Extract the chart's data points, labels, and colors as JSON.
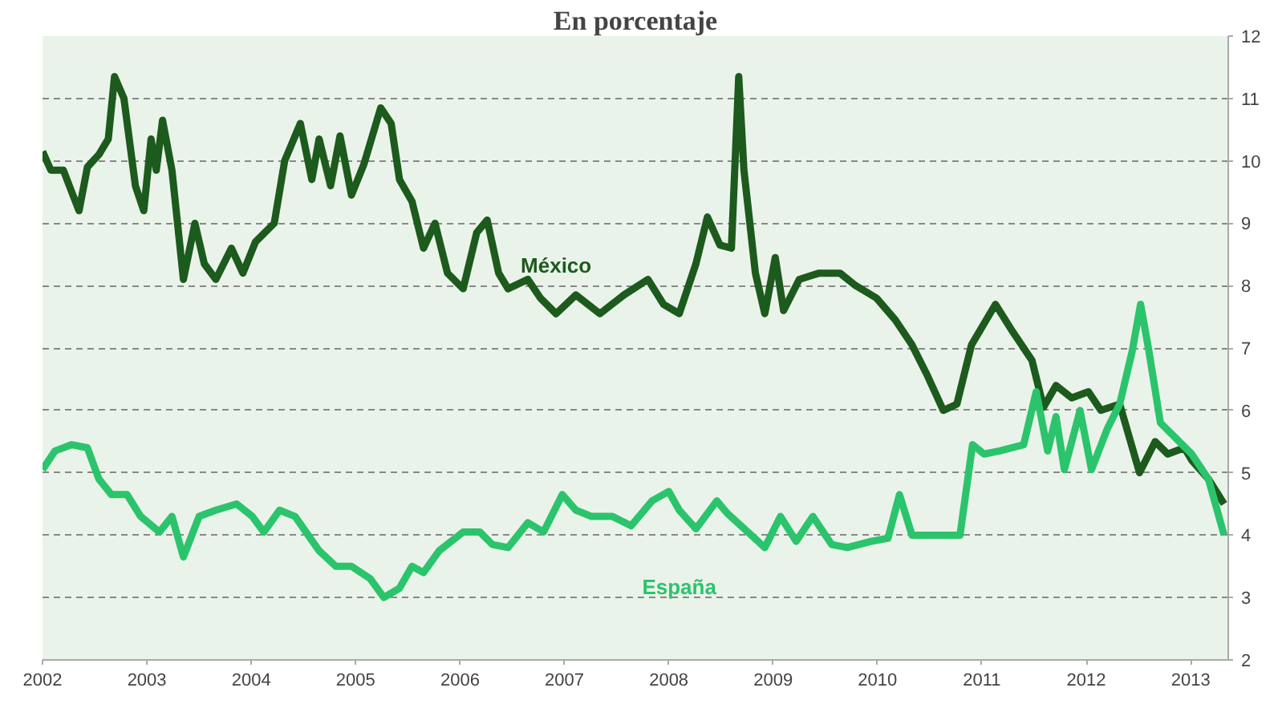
{
  "chart_data": {
    "type": "line",
    "title": "En porcentaje",
    "xlim": [
      2002,
      2013.36
    ],
    "xticks": [
      2002,
      2003,
      2004,
      2005,
      2006,
      2007,
      2008,
      2009,
      2010,
      2011,
      2012,
      2013
    ],
    "ylim": [
      2,
      12
    ],
    "yticks": [
      2,
      3,
      4,
      5,
      6,
      7,
      8,
      9,
      10,
      11,
      12
    ],
    "grid": "y",
    "line_style": "solid",
    "series": [
      {
        "name": "México",
        "color": "#1d5a1d",
        "x": [
          2002.0,
          2002.08,
          2002.2,
          2002.28,
          2002.35,
          2002.43,
          2002.54,
          2002.63,
          2002.69,
          2002.78,
          2002.89,
          2002.97,
          2003.04,
          2003.09,
          2003.15,
          2003.24,
          2003.35,
          2003.46,
          2003.55,
          2003.66,
          2003.81,
          2003.92,
          2004.04,
          2004.22,
          2004.32,
          2004.47,
          2004.58,
          2004.65,
          2004.76,
          2004.85,
          2004.96,
          2005.08,
          2005.24,
          2005.34,
          2005.42,
          2005.54,
          2005.65,
          2005.76,
          2005.88,
          2006.03,
          2006.16,
          2006.26,
          2006.37,
          2006.46,
          2006.65,
          2006.77,
          2006.92,
          2007.11,
          2007.34,
          2007.57,
          2007.8,
          2007.95,
          2008.1,
          2008.26,
          2008.37,
          2008.49,
          2008.6,
          2008.67,
          2008.72,
          2008.83,
          2008.92,
          2009.02,
          2009.1,
          2009.25,
          2009.44,
          2009.64,
          2009.79,
          2009.99,
          2010.17,
          2010.33,
          2010.48,
          2010.63,
          2010.76,
          2010.9,
          2011.13,
          2011.28,
          2011.48,
          2011.59,
          2011.71,
          2011.86,
          2012.02,
          2012.14,
          2012.32,
          2012.51,
          2012.66,
          2012.78,
          2012.94,
          2013.01,
          2013.17,
          2013.32
        ],
        "values": [
          10.15,
          9.85,
          9.85,
          9.5,
          9.2,
          9.9,
          10.1,
          10.35,
          11.35,
          11.0,
          9.6,
          9.2,
          10.35,
          9.85,
          10.65,
          9.85,
          8.1,
          9.0,
          8.35,
          8.1,
          8.6,
          8.2,
          8.7,
          9.0,
          10.0,
          10.6,
          9.7,
          10.35,
          9.6,
          10.4,
          9.45,
          9.95,
          10.85,
          10.6,
          9.7,
          9.35,
          8.6,
          9.0,
          8.2,
          7.95,
          8.85,
          9.05,
          8.2,
          7.95,
          8.1,
          7.8,
          7.55,
          7.85,
          7.55,
          7.85,
          8.1,
          7.7,
          7.55,
          8.35,
          9.1,
          8.65,
          8.6,
          11.35,
          9.85,
          8.2,
          7.55,
          8.45,
          7.6,
          8.1,
          8.2,
          8.2,
          8.0,
          7.8,
          7.45,
          7.05,
          6.55,
          6.0,
          6.1,
          7.05,
          7.7,
          7.3,
          6.8,
          6.05,
          6.4,
          6.2,
          6.3,
          6.0,
          6.1,
          5.0,
          5.5,
          5.3,
          5.4,
          5.2,
          4.9,
          4.5
        ]
      },
      {
        "name": "España",
        "color": "#2bc46c",
        "x": [
          2002.0,
          2002.12,
          2002.28,
          2002.43,
          2002.54,
          2002.66,
          2002.81,
          2002.94,
          2003.12,
          2003.24,
          2003.35,
          2003.5,
          2003.66,
          2003.86,
          2004.01,
          2004.12,
          2004.27,
          2004.42,
          2004.65,
          2004.81,
          2004.96,
          2005.14,
          2005.27,
          2005.42,
          2005.54,
          2005.65,
          2005.8,
          2006.03,
          2006.19,
          2006.31,
          2006.46,
          2006.65,
          2006.8,
          2006.98,
          2007.11,
          2007.26,
          2007.46,
          2007.64,
          2007.84,
          2008.0,
          2008.1,
          2008.26,
          2008.46,
          2008.56,
          2008.79,
          2008.92,
          2009.07,
          2009.22,
          2009.38,
          2009.56,
          2009.71,
          2009.94,
          2010.1,
          2010.21,
          2010.33,
          2010.63,
          2010.79,
          2010.91,
          2011.02,
          2011.17,
          2011.4,
          2011.52,
          2011.63,
          2011.71,
          2011.79,
          2011.94,
          2012.05,
          2012.2,
          2012.32,
          2012.44,
          2012.52,
          2012.6,
          2012.71,
          2012.86,
          2013.01,
          2013.17,
          2013.32
        ],
        "values": [
          5.05,
          5.35,
          5.45,
          5.4,
          4.9,
          4.65,
          4.65,
          4.3,
          4.05,
          4.3,
          3.65,
          4.3,
          4.4,
          4.5,
          4.3,
          4.05,
          4.4,
          4.3,
          3.75,
          3.5,
          3.5,
          3.3,
          3.0,
          3.15,
          3.5,
          3.4,
          3.75,
          4.05,
          4.05,
          3.85,
          3.8,
          4.2,
          4.05,
          4.65,
          4.4,
          4.3,
          4.3,
          4.15,
          4.55,
          4.7,
          4.4,
          4.1,
          4.55,
          4.35,
          4.0,
          3.8,
          4.3,
          3.9,
          4.3,
          3.85,
          3.8,
          3.9,
          3.95,
          4.65,
          4.0,
          4.0,
          4.0,
          5.45,
          5.3,
          5.35,
          5.45,
          6.3,
          5.35,
          5.9,
          5.05,
          6.0,
          5.05,
          5.7,
          6.1,
          6.95,
          7.7,
          6.95,
          5.8,
          5.55,
          5.3,
          4.9,
          4.0
        ]
      }
    ]
  }
}
